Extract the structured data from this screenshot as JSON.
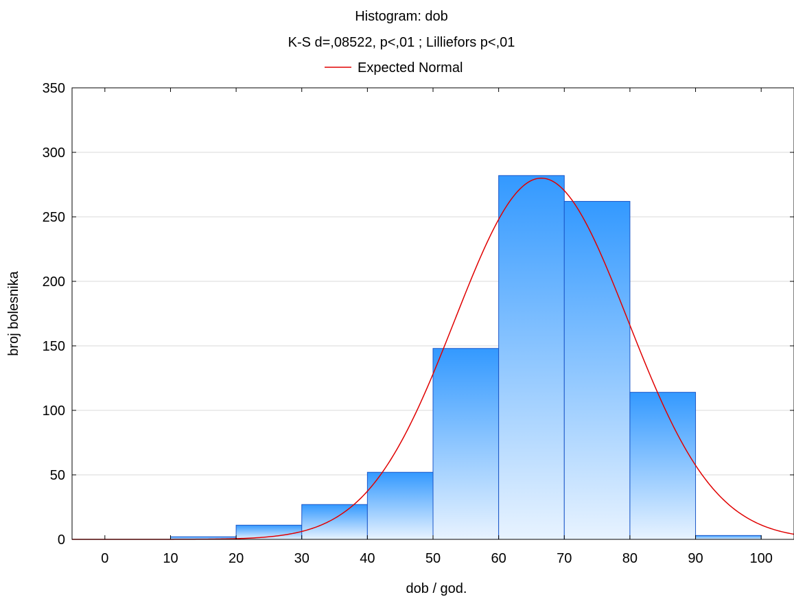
{
  "chart_data": {
    "type": "bar",
    "title": "Histogram: dob",
    "subtitle": "K-S d=,08522, p<,01 ; Lilliefors p<,01",
    "legend": [
      {
        "label": "Expected Normal",
        "color": "#e00000"
      }
    ],
    "legend_position": "top-center",
    "xlabel": "dob / god.",
    "ylabel": "broj bolesnika",
    "xlim": [
      -5,
      105
    ],
    "ylim": [
      0,
      350
    ],
    "xticks": [
      "0",
      "10",
      "20",
      "30",
      "40",
      "50",
      "60",
      "70",
      "80",
      "90",
      "100"
    ],
    "yticks": [
      "0",
      "50",
      "100",
      "150",
      "200",
      "250",
      "300",
      "350"
    ],
    "grid": "horizontal",
    "bins": [
      {
        "from": 10,
        "to": 20,
        "value": 2
      },
      {
        "from": 20,
        "to": 30,
        "value": 11
      },
      {
        "from": 30,
        "to": 40,
        "value": 27
      },
      {
        "from": 40,
        "to": 50,
        "value": 52
      },
      {
        "from": 50,
        "to": 60,
        "value": 148
      },
      {
        "from": 60,
        "to": 70,
        "value": 282
      },
      {
        "from": 70,
        "to": 80,
        "value": 262
      },
      {
        "from": 80,
        "to": 90,
        "value": 114
      },
      {
        "from": 90,
        "to": 100,
        "value": 3
      }
    ],
    "expected_normal": {
      "mean": 66.5,
      "sd": 13.2,
      "peak": 280
    },
    "colors": {
      "bar_top": "#3399ff",
      "bar_bottom": "#e8f3ff",
      "bar_edge": "#1a56c8",
      "curve": "#e00000",
      "grid": "#d8d8d8"
    }
  }
}
